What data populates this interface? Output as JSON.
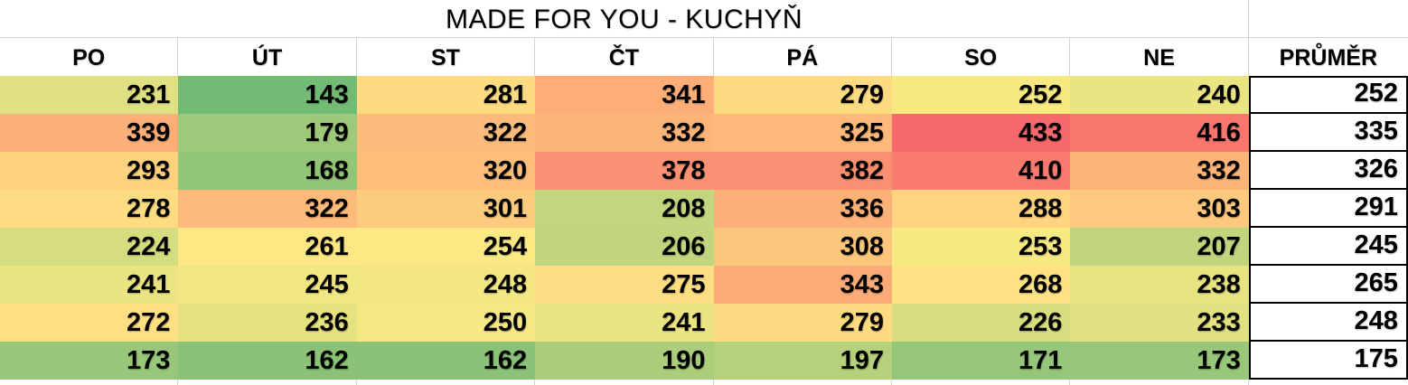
{
  "chart_data": {
    "type": "heatmap",
    "title": "MADE FOR YOU - KUCHYŇ",
    "columns": [
      "PO",
      "ÚT",
      "ST",
      "ČT",
      "PÁ",
      "SO",
      "NE"
    ],
    "average_label": "PRŮMĚR",
    "rows": [
      [
        231,
        143,
        281,
        341,
        279,
        252,
        240
      ],
      [
        339,
        179,
        322,
        332,
        325,
        433,
        416
      ],
      [
        293,
        168,
        320,
        378,
        382,
        410,
        332
      ],
      [
        278,
        322,
        301,
        208,
        336,
        288,
        303
      ],
      [
        224,
        261,
        254,
        206,
        308,
        253,
        207
      ],
      [
        241,
        245,
        248,
        275,
        343,
        268,
        238
      ],
      [
        272,
        236,
        250,
        241,
        279,
        226,
        233
      ],
      [
        173,
        162,
        162,
        190,
        197,
        171,
        173
      ]
    ],
    "row_averages": [
      252,
      335,
      326,
      291,
      245,
      265,
      248,
      175
    ],
    "color_scale": {
      "type": "3-color",
      "min_value": 143,
      "mid_value": 257.5,
      "max_value": 433,
      "min_color": "#73BA75",
      "mid_color": "#FFEB84",
      "max_color": "#F8696B"
    },
    "layout": {
      "grid_color": "#d4d4d4",
      "average_border_color": "#000000",
      "text_color": "#000000",
      "legend": "none"
    }
  }
}
